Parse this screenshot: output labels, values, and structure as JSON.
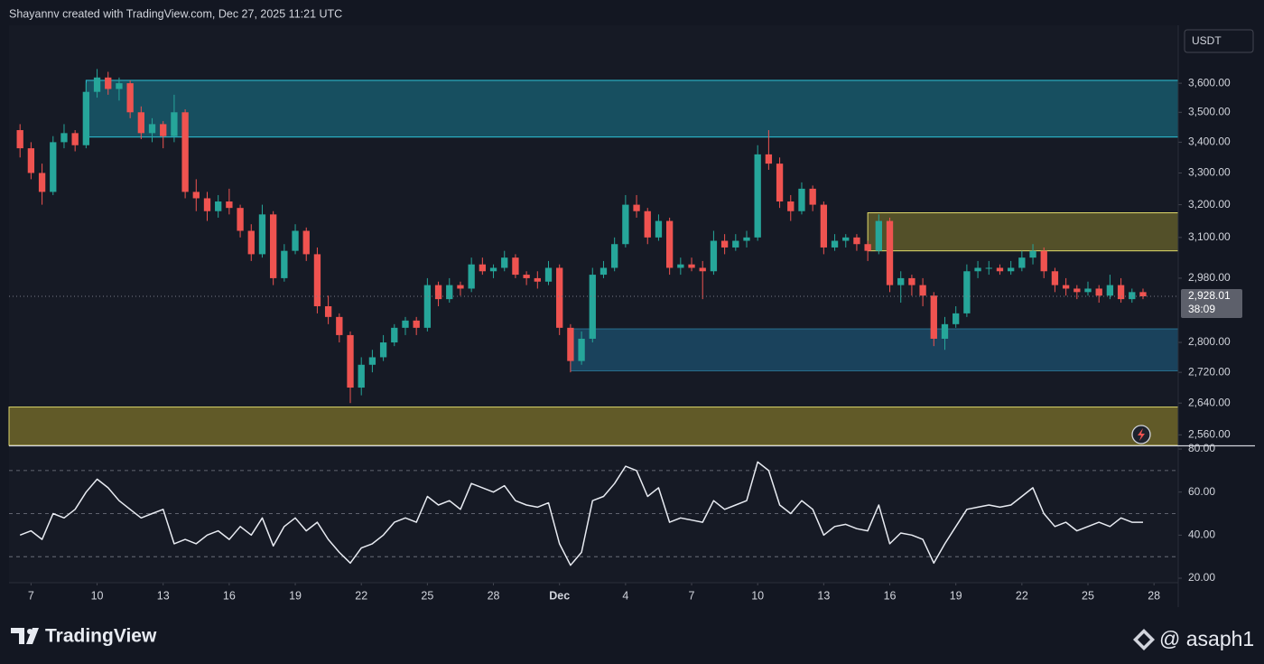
{
  "header": "Shayannv created with TradingView.com, Dec 27, 2025 11:21 UTC",
  "chart_data": [
    {
      "type": "candlestick",
      "currency": "USDT",
      "log": true,
      "up_color": "#26a69a",
      "down_color": "#ef5350",
      "xlim": [
        -1,
        105.2
      ],
      "ylim": [
        2534,
        3808
      ],
      "yticks": [
        {
          "value": 3600,
          "label": "3,600.00"
        },
        {
          "value": 3500,
          "label": "3,500.00"
        },
        {
          "value": 3400,
          "label": "3,400.00"
        },
        {
          "value": 3300,
          "label": "3,300.00"
        },
        {
          "value": 3200,
          "label": "3,200.00"
        },
        {
          "value": 3100,
          "label": "3,100.00"
        },
        {
          "value": 2980,
          "label": "2,980.00"
        },
        {
          "value": 2800,
          "label": "2,800.00"
        },
        {
          "value": 2720,
          "label": "2,720.00"
        },
        {
          "value": 2640,
          "label": "2,640.00"
        },
        {
          "value": 2560,
          "label": "2,560.00"
        }
      ],
      "xticks": [
        {
          "value": 1,
          "label": "7"
        },
        {
          "value": 7,
          "label": "10"
        },
        {
          "value": 13,
          "label": "13"
        },
        {
          "value": 19,
          "label": "16"
        },
        {
          "value": 25,
          "label": "19"
        },
        {
          "value": 31,
          "label": "22"
        },
        {
          "value": 37,
          "label": "25"
        },
        {
          "value": 43,
          "label": "28"
        },
        {
          "value": 49,
          "label": "Dec"
        },
        {
          "value": 55,
          "label": "4"
        },
        {
          "value": 61,
          "label": "7"
        },
        {
          "value": 67,
          "label": "10"
        },
        {
          "value": 73,
          "label": "13"
        },
        {
          "value": 79,
          "label": "16"
        },
        {
          "value": 85,
          "label": "19"
        },
        {
          "value": 91,
          "label": "22"
        },
        {
          "value": 97,
          "label": "25"
        },
        {
          "value": 103,
          "label": "28"
        }
      ],
      "zones": [
        {
          "from": 6,
          "top": 3610,
          "bottom": 3417,
          "color": "#17596b",
          "border": "#2ec5d8"
        },
        {
          "from": 77,
          "top": 3175,
          "bottom": 3060,
          "color": "#5e5a2a",
          "border": "#e3dd6c"
        },
        {
          "from": 50,
          "top": 2837,
          "bottom": 2724,
          "color": "#1b4a66",
          "border": "#2a6f8f"
        },
        {
          "from": -1,
          "top": 2630,
          "bottom": 2534,
          "color": "#6f6629",
          "border": "#d8d26a"
        }
      ],
      "last_price": 2928.01,
      "last_price_label": "2,928.01",
      "countdown": "38:09",
      "ohlc": [
        [
          3440,
          3460,
          3350,
          3380
        ],
        [
          3380,
          3400,
          3280,
          3300
        ],
        [
          3300,
          3330,
          3200,
          3240
        ],
        [
          3240,
          3420,
          3230,
          3400
        ],
        [
          3400,
          3460,
          3380,
          3430
        ],
        [
          3430,
          3440,
          3370,
          3390
        ],
        [
          3390,
          3600,
          3380,
          3570
        ],
        [
          3570,
          3650,
          3550,
          3620
        ],
        [
          3620,
          3640,
          3560,
          3580
        ],
        [
          3580,
          3620,
          3540,
          3600
        ],
        [
          3600,
          3610,
          3480,
          3500
        ],
        [
          3500,
          3520,
          3410,
          3430
        ],
        [
          3430,
          3480,
          3400,
          3460
        ],
        [
          3460,
          3470,
          3380,
          3420
        ],
        [
          3420,
          3560,
          3400,
          3500
        ],
        [
          3500,
          3510,
          3220,
          3240
        ],
        [
          3240,
          3280,
          3180,
          3220
        ],
        [
          3220,
          3240,
          3150,
          3180
        ],
        [
          3180,
          3230,
          3160,
          3210
        ],
        [
          3210,
          3250,
          3170,
          3190
        ],
        [
          3190,
          3200,
          3100,
          3120
        ],
        [
          3120,
          3140,
          3030,
          3050
        ],
        [
          3050,
          3200,
          3040,
          3170
        ],
        [
          3170,
          3180,
          2960,
          2980
        ],
        [
          2980,
          3080,
          2970,
          3060
        ],
        [
          3060,
          3140,
          3050,
          3120
        ],
        [
          3120,
          3130,
          3030,
          3050
        ],
        [
          3050,
          3070,
          2880,
          2900
        ],
        [
          2900,
          2930,
          2850,
          2870
        ],
        [
          2870,
          2880,
          2800,
          2820
        ],
        [
          2820,
          2830,
          2640,
          2680
        ],
        [
          2680,
          2760,
          2660,
          2740
        ],
        [
          2740,
          2780,
          2720,
          2760
        ],
        [
          2760,
          2820,
          2750,
          2800
        ],
        [
          2800,
          2850,
          2790,
          2840
        ],
        [
          2840,
          2870,
          2820,
          2860
        ],
        [
          2860,
          2870,
          2820,
          2840
        ],
        [
          2840,
          2980,
          2830,
          2960
        ],
        [
          2960,
          2970,
          2900,
          2920
        ],
        [
          2920,
          2980,
          2910,
          2960
        ],
        [
          2960,
          2970,
          2930,
          2950
        ],
        [
          2950,
          3040,
          2940,
          3020
        ],
        [
          3020,
          3040,
          2990,
          3000
        ],
        [
          3000,
          3020,
          2980,
          3010
        ],
        [
          3010,
          3060,
          3000,
          3040
        ],
        [
          3040,
          3050,
          2980,
          2990
        ],
        [
          2990,
          3000,
          2960,
          2980
        ],
        [
          2980,
          3000,
          2950,
          2970
        ],
        [
          2970,
          3030,
          2960,
          3010
        ],
        [
          3010,
          3020,
          2820,
          2840
        ],
        [
          2840,
          2850,
          2720,
          2750
        ],
        [
          2750,
          2830,
          2740,
          2810
        ],
        [
          2810,
          3010,
          2800,
          2990
        ],
        [
          2990,
          3030,
          2980,
          3010
        ],
        [
          3010,
          3100,
          3000,
          3080
        ],
        [
          3080,
          3230,
          3070,
          3200
        ],
        [
          3200,
          3230,
          3160,
          3180
        ],
        [
          3180,
          3190,
          3080,
          3100
        ],
        [
          3100,
          3170,
          3090,
          3150
        ],
        [
          3150,
          3160,
          2990,
          3010
        ],
        [
          3010,
          3040,
          2990,
          3020
        ],
        [
          3020,
          3040,
          3000,
          3010
        ],
        [
          3010,
          3030,
          2920,
          3000
        ],
        [
          3000,
          3120,
          2990,
          3090
        ],
        [
          3090,
          3110,
          3050,
          3070
        ],
        [
          3070,
          3110,
          3060,
          3090
        ],
        [
          3090,
          3120,
          3070,
          3100
        ],
        [
          3100,
          3390,
          3090,
          3360
        ],
        [
          3360,
          3440,
          3310,
          3330
        ],
        [
          3330,
          3350,
          3190,
          3210
        ],
        [
          3210,
          3230,
          3150,
          3180
        ],
        [
          3180,
          3270,
          3170,
          3250
        ],
        [
          3250,
          3260,
          3180,
          3200
        ],
        [
          3200,
          3210,
          3050,
          3070
        ],
        [
          3070,
          3110,
          3060,
          3090
        ],
        [
          3090,
          3110,
          3070,
          3100
        ],
        [
          3100,
          3110,
          3060,
          3080
        ],
        [
          3080,
          3090,
          3030,
          3060
        ],
        [
          3060,
          3170,
          3050,
          3150
        ],
        [
          3150,
          3160,
          2940,
          2960
        ],
        [
          2960,
          3000,
          2910,
          2980
        ],
        [
          2980,
          2990,
          2930,
          2960
        ],
        [
          2960,
          2980,
          2900,
          2930
        ],
        [
          2930,
          2940,
          2790,
          2810
        ],
        [
          2810,
          2870,
          2780,
          2850
        ],
        [
          2850,
          2900,
          2840,
          2880
        ],
        [
          2880,
          3020,
          2870,
          3000
        ],
        [
          3000,
          3030,
          2980,
          3010
        ],
        [
          3010,
          3030,
          2990,
          3010
        ],
        [
          3010,
          3020,
          2990,
          3000
        ],
        [
          3000,
          3030,
          2990,
          3010
        ],
        [
          3010,
          3060,
          3000,
          3040
        ],
        [
          3040,
          3080,
          3020,
          3060
        ],
        [
          3060,
          3070,
          2980,
          3000
        ],
        [
          3000,
          3010,
          2940,
          2960
        ],
        [
          2960,
          2980,
          2930,
          2950
        ],
        [
          2950,
          2960,
          2920,
          2940
        ],
        [
          2940,
          2970,
          2930,
          2950
        ],
        [
          2950,
          2960,
          2910,
          2930
        ],
        [
          2930,
          2990,
          2920,
          2960
        ],
        [
          2960,
          2980,
          2910,
          2920
        ],
        [
          2920,
          2950,
          2910,
          2940
        ],
        [
          2940,
          2950,
          2920,
          2928.01
        ]
      ]
    },
    {
      "type": "line",
      "color": "#e8ebf2",
      "ylim": [
        17.9,
        81.7
      ],
      "yticks": [
        {
          "value": 80,
          "label": "80.00"
        },
        {
          "value": 60,
          "label": "60.00"
        },
        {
          "value": 40,
          "label": "40.00"
        },
        {
          "value": 20,
          "label": "20.00"
        }
      ],
      "levels": [
        70,
        50,
        30
      ],
      "values": [
        40,
        42,
        38,
        50,
        48,
        52,
        60,
        66,
        62,
        56,
        52,
        48,
        50,
        52,
        36,
        38,
        36,
        40,
        42,
        38,
        44,
        40,
        48,
        35,
        44,
        48,
        42,
        46,
        38,
        32,
        27,
        34,
        36,
        40,
        46,
        48,
        46,
        58,
        54,
        56,
        52,
        64,
        62,
        60,
        63,
        56,
        54,
        53,
        55,
        36,
        26,
        32,
        56,
        58,
        64,
        72,
        70,
        58,
        62,
        46,
        48,
        47,
        46,
        56,
        52,
        54,
        56,
        74,
        70,
        54,
        50,
        56,
        52,
        40,
        44,
        45,
        43,
        42,
        54,
        36,
        41,
        40,
        38,
        27,
        36,
        44,
        52,
        53,
        54,
        53,
        54,
        58,
        62,
        50,
        44,
        46,
        42,
        44,
        46,
        44,
        48,
        46,
        46
      ]
    }
  ],
  "footer": {
    "logo": "TradingView",
    "watermark": "@ asaph1"
  }
}
